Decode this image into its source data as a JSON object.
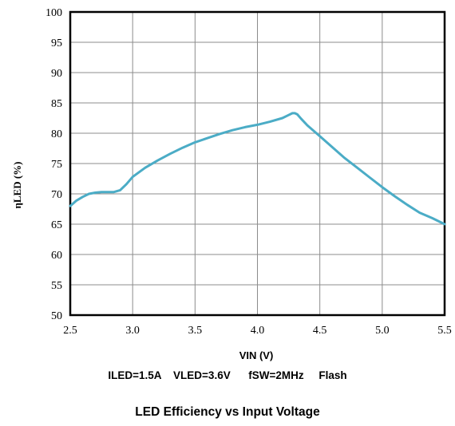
{
  "chart_data": {
    "type": "line",
    "title": "LED Efficiency vs Input Voltage",
    "subtitle": "ILED=1.5A    VLED=3.6V      fSW=2MHz     Flash",
    "xlabel": "VIN  (V)",
    "ylabel": "ηLED  (%)",
    "xlim": [
      2.5,
      5.5
    ],
    "ylim": [
      50,
      100
    ],
    "x_ticks": [
      "2.5",
      "3.0",
      "3.5",
      "4.0",
      "4.5",
      "5.0",
      "5.5"
    ],
    "y_ticks": [
      "50",
      "55",
      "60",
      "65",
      "70",
      "75",
      "80",
      "85",
      "90",
      "95",
      "100"
    ],
    "grid": true,
    "legend": "none",
    "series_color": "#4bacc6",
    "series": [
      {
        "x": [
          2.5,
          2.55,
          2.6,
          2.65,
          2.7,
          2.75,
          2.8,
          2.85,
          2.9,
          2.95,
          3.0,
          3.1,
          3.2,
          3.3,
          3.4,
          3.5,
          3.6,
          3.7,
          3.8,
          3.9,
          4.0,
          4.1,
          4.2,
          4.25,
          4.28,
          4.3,
          4.32,
          4.35,
          4.4,
          4.5,
          4.6,
          4.7,
          4.8,
          4.9,
          5.0,
          5.1,
          5.2,
          5.3,
          5.4,
          5.5
        ],
        "y": [
          68.0,
          68.9,
          69.5,
          70.0,
          70.2,
          70.3,
          70.3,
          70.3,
          70.6,
          71.6,
          72.8,
          74.3,
          75.5,
          76.6,
          77.6,
          78.5,
          79.2,
          79.9,
          80.5,
          81.0,
          81.4,
          81.9,
          82.5,
          83.0,
          83.3,
          83.3,
          83.1,
          82.4,
          81.3,
          79.5,
          77.7,
          75.9,
          74.3,
          72.7,
          71.1,
          69.6,
          68.2,
          66.9,
          66.0,
          65.0
        ]
      }
    ]
  }
}
